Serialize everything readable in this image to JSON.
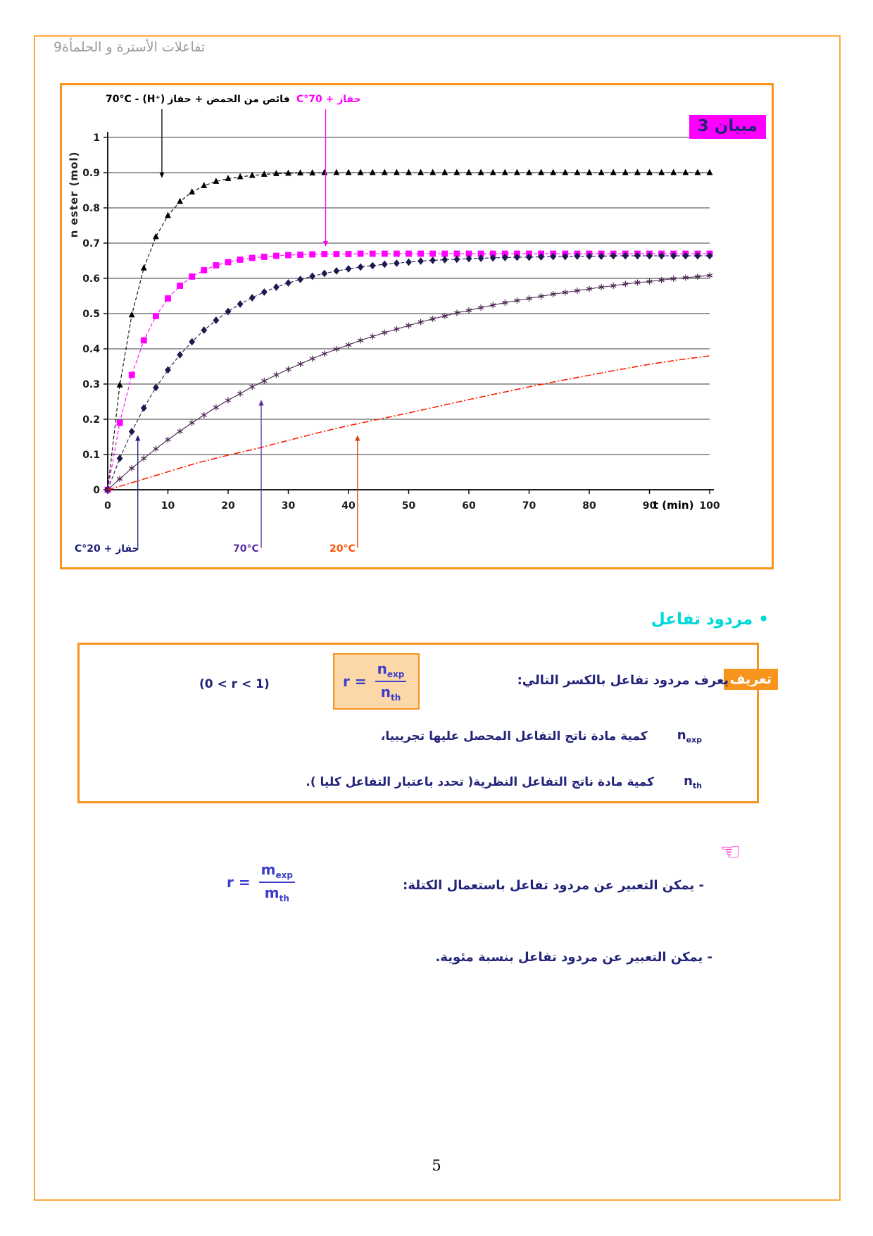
{
  "page": {
    "number": "5"
  },
  "header": {
    "title": "تفاعلات الأسترة و الحلمأة9"
  },
  "chart": {
    "badge": "مبيان 3",
    "y_axis": "n ester (mol)",
    "x_axis": "t (min)",
    "labels": {
      "acid_ltr": "70°C - (H⁺)",
      "acid_ar": "فائص من الحمض + حفاز",
      "cat70": "حفاز + 70°C",
      "cat20": "حفاز + 20°C",
      "t70": "70°C",
      "t20": "20°C"
    }
  },
  "chart_data": {
    "type": "line",
    "title": "مبيان 3",
    "xlabel": "t (min)",
    "ylabel": "n ester (mol)",
    "xlim": [
      0,
      100
    ],
    "ylim": [
      0,
      1
    ],
    "xticks": [
      0,
      10,
      20,
      30,
      40,
      50,
      60,
      70,
      80,
      90,
      100
    ],
    "yticks": [
      0,
      0.1,
      0.2,
      0.3,
      0.4,
      0.5,
      0.6,
      0.7,
      0.8,
      0.9,
      1
    ],
    "grid": "horizontal",
    "series": [
      {
        "id": "acid-70",
        "name": "فائص من الحمض + حفاز (H⁺) - 70°C",
        "color": "#000000",
        "marker": "triangle",
        "line": "dash",
        "plateau": 0.9,
        "t_step": 2,
        "n": [
          0,
          0.297,
          0.496,
          0.629,
          0.718,
          0.778,
          0.818,
          0.845,
          0.863,
          0.875,
          0.883,
          0.888,
          0.892,
          0.895,
          0.897,
          0.898,
          0.899,
          0.899,
          0.9,
          0.9,
          0.9,
          0.9,
          0.9,
          0.9,
          0.9,
          0.9,
          0.9,
          0.9,
          0.9,
          0.9,
          0.9,
          0.9,
          0.9,
          0.9,
          0.9,
          0.9,
          0.9,
          0.9,
          0.9,
          0.9,
          0.9,
          0.9,
          0.9,
          0.9,
          0.9,
          0.9,
          0.9,
          0.9,
          0.9,
          0.9,
          0.9
        ]
      },
      {
        "id": "cat-70",
        "name": "حفاز + 70°C",
        "color": "#ff00ff",
        "marker": "square",
        "line": "dash",
        "plateau": 0.67,
        "t_step": 2,
        "n": [
          0,
          0.19,
          0.326,
          0.424,
          0.493,
          0.543,
          0.579,
          0.605,
          0.623,
          0.637,
          0.646,
          0.653,
          0.658,
          0.661,
          0.664,
          0.666,
          0.667,
          0.668,
          0.669,
          0.669,
          0.669,
          0.67,
          0.67,
          0.67,
          0.67,
          0.67,
          0.67,
          0.67,
          0.67,
          0.67,
          0.67,
          0.67,
          0.67,
          0.67,
          0.67,
          0.67,
          0.67,
          0.67,
          0.67,
          0.67,
          0.67,
          0.67,
          0.67,
          0.67,
          0.67,
          0.67,
          0.67,
          0.67,
          0.67,
          0.67,
          0.67
        ]
      },
      {
        "id": "cat-20",
        "name": "حفاز + 20°C",
        "color": "#1b1b4e",
        "marker": "diamond",
        "line": "dash",
        "plateau": 0.665,
        "t_step": 2,
        "n": [
          0,
          0.089,
          0.165,
          0.232,
          0.29,
          0.34,
          0.383,
          0.42,
          0.453,
          0.481,
          0.506,
          0.527,
          0.545,
          0.561,
          0.575,
          0.587,
          0.597,
          0.606,
          0.614,
          0.621,
          0.627,
          0.632,
          0.636,
          0.64,
          0.643,
          0.646,
          0.649,
          0.651,
          0.653,
          0.654,
          0.656,
          0.657,
          0.658,
          0.659,
          0.66,
          0.66,
          0.661,
          0.662,
          0.662,
          0.663,
          0.663,
          0.663,
          0.664,
          0.664,
          0.664,
          0.664,
          0.664,
          0.664,
          0.664,
          0.664,
          0.664
        ]
      },
      {
        "id": "no-cat-70",
        "name": "70°C",
        "color": "#4a2450",
        "marker": "star",
        "line": "solid",
        "t_step": 2,
        "n": [
          0,
          0.031,
          0.061,
          0.089,
          0.116,
          0.142,
          0.166,
          0.19,
          0.212,
          0.234,
          0.254,
          0.273,
          0.292,
          0.309,
          0.326,
          0.342,
          0.357,
          0.372,
          0.386,
          0.399,
          0.411,
          0.424,
          0.435,
          0.446,
          0.456,
          0.466,
          0.476,
          0.485,
          0.493,
          0.502,
          0.509,
          0.517,
          0.524,
          0.531,
          0.537,
          0.543,
          0.549,
          0.555,
          0.56,
          0.565,
          0.57,
          0.575,
          0.579,
          0.584,
          0.588,
          0.591,
          0.595,
          0.599,
          0.602,
          0.605,
          0.608
        ]
      },
      {
        "id": "no-cat-20",
        "name": "20°C",
        "color": "#ff1e00",
        "marker": "none",
        "line": "dashdot",
        "t": [
          0,
          5,
          10,
          15,
          20,
          25,
          30,
          35,
          40,
          45,
          50,
          55,
          60,
          65,
          70,
          75,
          80,
          85,
          90,
          95,
          100
        ],
        "n": [
          0,
          0.025,
          0.051,
          0.077,
          0.098,
          0.118,
          0.14,
          0.162,
          0.182,
          0.2,
          0.218,
          0.237,
          0.256,
          0.274,
          0.292,
          0.309,
          0.325,
          0.341,
          0.356,
          0.369,
          0.38
        ]
      }
    ],
    "arrows": [
      {
        "label_for": "acid-70",
        "t": 9,
        "n_from": 1.08,
        "n_to": 0.885,
        "color": "#000000"
      },
      {
        "label_for": "cat-70",
        "t": 36.2,
        "n_from": 1.08,
        "n_to": 0.69,
        "color": "#ff00ff"
      },
      {
        "label_for": "cat-20",
        "t": 5,
        "n_from": -0.165,
        "n_to": 0.155,
        "color": "#1e1e78"
      },
      {
        "label_for": "no-cat-70",
        "t": 25.5,
        "n_from": -0.165,
        "n_to": 0.255,
        "color": "#5a2ca0"
      },
      {
        "label_for": "no-cat-20",
        "t": 41.5,
        "n_from": -0.165,
        "n_to": 0.155,
        "color": "#e03a10"
      }
    ]
  },
  "yield": {
    "heading": "• مردود تفاعل",
    "definition": {
      "tag": "تعريف",
      "intro": "يعرف مردود تفاعل بالكسر التالي:",
      "domain": "(0 < r < 1)",
      "exp_symbol": "n",
      "exp_sub": "exp",
      "exp_text": "كمية مادة ناتج التفاعل المحصل عليها تجريبيا،",
      "th_symbol": "n",
      "th_sub": "th",
      "th_text": "كمية مادة ناتج التفاعل النظرية( تحدد باعتبار التفاعل كليا )."
    },
    "formulas": {
      "mol": {
        "lhs": "r",
        "eq": "=",
        "num": "n",
        "num_sub": "exp",
        "den": "n",
        "den_sub": "th"
      },
      "mass": {
        "lhs": "r",
        "eq": "=",
        "num": "m",
        "num_sub": "exp",
        "den": "m",
        "den_sub": "th"
      }
    },
    "notes": {
      "hand_icon": "☜",
      "line1": "- يمكن التعبير عن مردود تفاعل باستعمال الكتلة:",
      "line2": "- يمكن التعبير عن مردود تفاعل بنسبة مئوية."
    }
  }
}
